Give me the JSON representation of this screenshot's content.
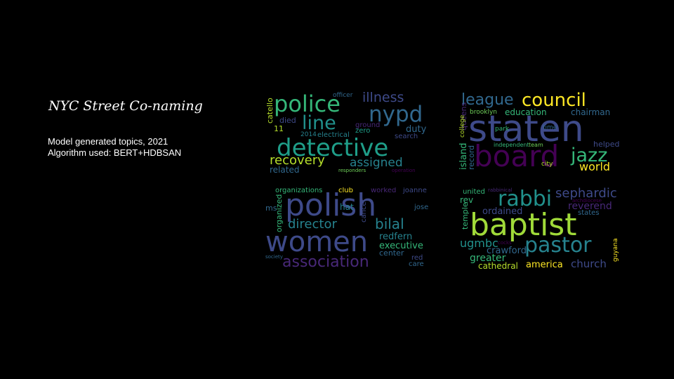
{
  "slide": {
    "title": "NYC Street Co-naming",
    "subtitle_line1": "Model generated topics, 2021",
    "subtitle_line2": "Algorithm used: BERT+HDBSAN"
  },
  "word_clouds": [
    {
      "words": [
        {
          "text": "police",
          "color": "#35b779"
        },
        {
          "text": "illness",
          "color": "#3e4a89"
        },
        {
          "text": "officer",
          "color": "#31688e"
        },
        {
          "text": "nypd",
          "color": "#31688e"
        },
        {
          "text": "line",
          "color": "#21918c"
        },
        {
          "text": "catello",
          "color": "#b5de2b"
        },
        {
          "text": "11",
          "color": "#b5de2b"
        },
        {
          "text": "died",
          "color": "#3e4a89"
        },
        {
          "text": "ground",
          "color": "#482878"
        },
        {
          "text": "zero",
          "color": "#1f9e89"
        },
        {
          "text": "duty",
          "color": "#31688e"
        },
        {
          "text": "2014",
          "color": "#26828e"
        },
        {
          "text": "electrical",
          "color": "#26828e"
        },
        {
          "text": "search",
          "color": "#3e4a89"
        },
        {
          "text": "detective",
          "color": "#1f9e89"
        },
        {
          "text": "recovery",
          "color": "#b5de2b"
        },
        {
          "text": "assigned",
          "color": "#26828e"
        },
        {
          "text": "related",
          "color": "#31688e"
        },
        {
          "text": "responders",
          "color": "#6ece58"
        },
        {
          "text": "operation",
          "color": "#440154"
        }
      ]
    },
    {
      "words": [
        {
          "text": "league",
          "color": "#31688e"
        },
        {
          "text": "council",
          "color": "#fde725"
        },
        {
          "text": "queens",
          "color": "#482878"
        },
        {
          "text": "brooklyn",
          "color": "#6ece58"
        },
        {
          "text": "education",
          "color": "#35b779"
        },
        {
          "text": "chairman",
          "color": "#31688e"
        },
        {
          "text": "staten",
          "color": "#3e4a89"
        },
        {
          "text": "college",
          "color": "#b5de2b"
        },
        {
          "text": "park",
          "color": "#35b779"
        },
        {
          "text": "time",
          "color": "#31688e"
        },
        {
          "text": "island",
          "color": "#35b779"
        },
        {
          "text": "record",
          "color": "#31688e"
        },
        {
          "text": "independent",
          "color": "#35b779"
        },
        {
          "text": "team",
          "color": "#6ece58"
        },
        {
          "text": "helped",
          "color": "#3e4a89"
        },
        {
          "text": "board",
          "color": "#440154"
        },
        {
          "text": "jazz",
          "color": "#35b779"
        },
        {
          "text": "city",
          "color": "#b5de2b"
        },
        {
          "text": "world",
          "color": "#fde725"
        }
      ]
    },
    {
      "words": [
        {
          "text": "organizations",
          "color": "#35b779"
        },
        {
          "text": "club",
          "color": "#fde725"
        },
        {
          "text": "worked",
          "color": "#482878"
        },
        {
          "text": "joanne",
          "color": "#3e4a89"
        },
        {
          "text": "polish",
          "color": "#3e4a89"
        },
        {
          "text": "ms",
          "color": "#31688e"
        },
        {
          "text": "organized",
          "color": "#35b779"
        },
        {
          "text": "hat",
          "color": "#26828e"
        },
        {
          "text": "cancer",
          "color": "#3e4a89"
        },
        {
          "text": "jose",
          "color": "#31688e"
        },
        {
          "text": "director",
          "color": "#26828e"
        },
        {
          "text": "bilal",
          "color": "#26828e"
        },
        {
          "text": "women",
          "color": "#3e4a89"
        },
        {
          "text": "redfern",
          "color": "#26828e"
        },
        {
          "text": "executive",
          "color": "#35b779"
        },
        {
          "text": "center",
          "color": "#31688e"
        },
        {
          "text": "society",
          "color": "#31688e"
        },
        {
          "text": "red",
          "color": "#3e4a89"
        },
        {
          "text": "care",
          "color": "#31688e"
        },
        {
          "text": "association",
          "color": "#482878"
        }
      ]
    },
    {
      "words": [
        {
          "text": "united",
          "color": "#35b779"
        },
        {
          "text": "rabbinical",
          "color": "#482878"
        },
        {
          "text": "sephardic",
          "color": "#3e4a89"
        },
        {
          "text": "rev",
          "color": "#35b779"
        },
        {
          "text": "rabbi",
          "color": "#21918c"
        },
        {
          "text": "archdiocese",
          "color": "#440154"
        },
        {
          "text": "reverend",
          "color": "#482878"
        },
        {
          "text": "ordained",
          "color": "#3e4a89"
        },
        {
          "text": "states",
          "color": "#31688e"
        },
        {
          "text": "temple",
          "color": "#35b779"
        },
        {
          "text": "baptist",
          "color": "#a0da39"
        },
        {
          "text": "ugmbc",
          "color": "#21918c"
        },
        {
          "text": "cocks",
          "color": "#440154"
        },
        {
          "text": "crawford",
          "color": "#31688e"
        },
        {
          "text": "pastor",
          "color": "#26828e"
        },
        {
          "text": "guyana",
          "color": "#fde725"
        },
        {
          "text": "greater",
          "color": "#35b779"
        },
        {
          "text": "cathedral",
          "color": "#b5de2b"
        },
        {
          "text": "america",
          "color": "#fde725"
        },
        {
          "text": "church",
          "color": "#3e4a89"
        }
      ]
    }
  ]
}
